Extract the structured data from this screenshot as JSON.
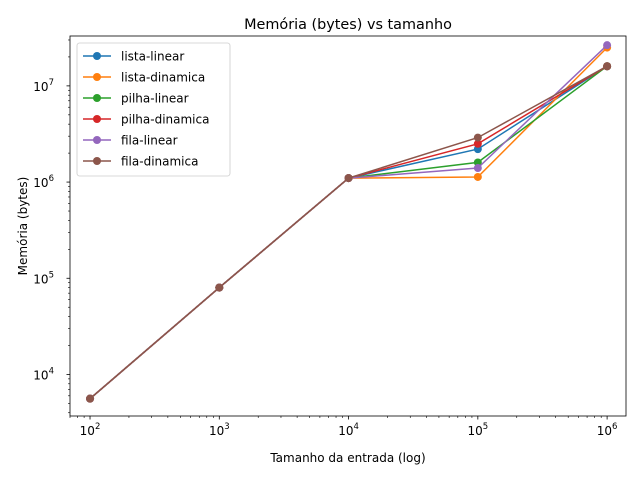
{
  "chart_data": {
    "type": "line",
    "title": "Memória (bytes) vs tamanho",
    "xlabel": "Tamanho da entrada (log)",
    "ylabel": "Memória (bytes)",
    "xscale": "log",
    "yscale": "log",
    "xlim": [
      70,
      1400000
    ],
    "ylim": [
      3700,
      33000000
    ],
    "grid": false,
    "legend_position": "top-left",
    "x": [
      100,
      1000,
      10000,
      100000,
      1000000
    ],
    "xticks": [
      {
        "base": "10",
        "exp": "2",
        "value": 100
      },
      {
        "base": "10",
        "exp": "3",
        "value": 1000
      },
      {
        "base": "10",
        "exp": "4",
        "value": 10000
      },
      {
        "base": "10",
        "exp": "5",
        "value": 100000
      },
      {
        "base": "10",
        "exp": "6",
        "value": 1000000
      }
    ],
    "yticks": [
      {
        "base": "10",
        "exp": "4",
        "value": 10000
      },
      {
        "base": "10",
        "exp": "5",
        "value": 100000
      },
      {
        "base": "10",
        "exp": "6",
        "value": 1000000
      },
      {
        "base": "10",
        "exp": "7",
        "value": 10000000
      }
    ],
    "series": [
      {
        "name": "lista-linear",
        "color": "#1f77b4",
        "values": [
          5600,
          80000,
          1100000,
          2200000,
          16000000
        ]
      },
      {
        "name": "lista-dinamica",
        "color": "#ff7f0e",
        "values": [
          5600,
          80000,
          1100000,
          1130000,
          25000000
        ]
      },
      {
        "name": "pilha-linear",
        "color": "#2ca02c",
        "values": [
          5600,
          80000,
          1100000,
          1600000,
          16000000
        ]
      },
      {
        "name": "pilha-dinamica",
        "color": "#d62728",
        "values": [
          5600,
          80000,
          1100000,
          2500000,
          16000000
        ]
      },
      {
        "name": "fila-linear",
        "color": "#9467bd",
        "values": [
          5600,
          80000,
          1100000,
          1400000,
          26500000
        ]
      },
      {
        "name": "fila-dinamica",
        "color": "#8c564b",
        "values": [
          5600,
          80000,
          1100000,
          2900000,
          16000000
        ]
      }
    ]
  }
}
